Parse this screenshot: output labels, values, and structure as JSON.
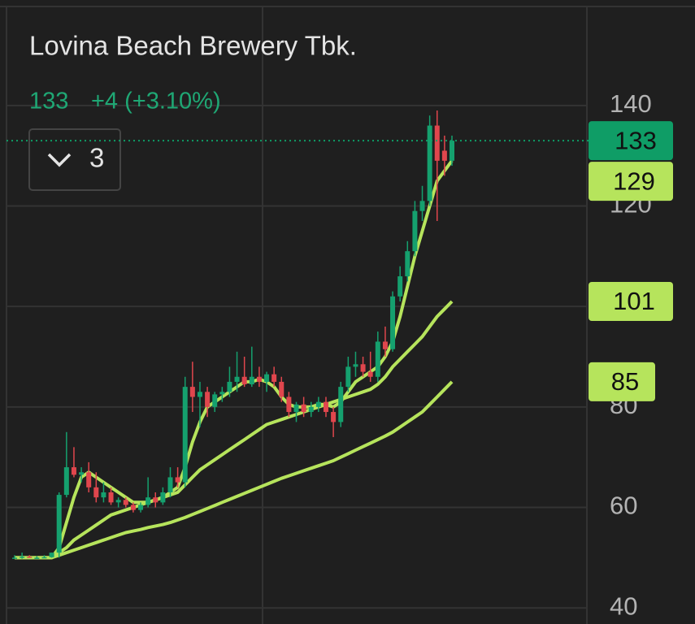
{
  "header": {
    "title": "Lovina Beach Brewery Tbk.",
    "change": "+4 (+3.10%)",
    "indicators": 3
  },
  "chart_data": {
    "type": "candlestick",
    "open": [
      50,
      50,
      50.2,
      50,
      50,
      50.1,
      51,
      62.5,
      68,
      66.5,
      67,
      64,
      62,
      63,
      61,
      61.5,
      60.5,
      59.5,
      60.5,
      62,
      61,
      63,
      66,
      65,
      84,
      82,
      83,
      80,
      82.5,
      83,
      85,
      86,
      84.5,
      86,
      85,
      86.5,
      85,
      82,
      79,
      80.5,
      79,
      80,
      81,
      79,
      77,
      84,
      88,
      88.5,
      87,
      86,
      93,
      91.5,
      102,
      106,
      111,
      119,
      121,
      136,
      131,
      129
    ],
    "high": [
      50.5,
      51,
      50.5,
      50.3,
      50.5,
      51,
      63,
      75,
      72,
      68,
      69,
      67,
      65,
      64,
      62,
      62,
      61,
      61,
      66,
      63,
      64,
      68,
      68,
      86,
      89,
      85,
      84,
      83,
      84,
      88,
      91,
      90,
      92,
      88,
      87,
      88,
      86,
      83,
      81,
      82,
      81,
      82,
      82,
      80,
      85,
      90,
      91,
      90,
      91,
      95,
      96,
      103,
      108,
      113,
      121,
      124,
      138,
      139,
      134,
      134
    ],
    "low": [
      50,
      49.8,
      50,
      49.8,
      49.9,
      50,
      50,
      62,
      66,
      65,
      63,
      61,
      61,
      60.5,
      60,
      60,
      59,
      59,
      60,
      60,
      60.5,
      62,
      64,
      64,
      79,
      76,
      78,
      79,
      81,
      82,
      83,
      84,
      84,
      84,
      83,
      84,
      81,
      78,
      77,
      78,
      78,
      79,
      78,
      74,
      76,
      83,
      86,
      86,
      85,
      85,
      90,
      91,
      101,
      105,
      110,
      117,
      120,
      117,
      126,
      128
    ],
    "close": [
      50,
      50.2,
      50,
      50,
      50.1,
      51,
      62.5,
      68,
      66.5,
      67,
      64,
      62,
      63,
      61,
      61.5,
      60.5,
      59.5,
      60.5,
      62,
      61,
      63,
      66,
      65,
      84,
      82,
      83,
      80,
      82.5,
      83,
      85,
      86,
      84.5,
      86,
      85,
      86.5,
      85,
      82,
      79,
      80.5,
      79,
      80,
      81,
      79,
      77,
      84,
      88,
      88.5,
      87,
      86,
      93,
      91.5,
      102,
      106,
      111,
      119,
      121,
      136,
      129,
      129,
      133
    ],
    "up_color": "#15a06e",
    "down_color": "#e0464d",
    "lines": [
      {
        "color": "#b6e45c",
        "values": [
          50,
          50,
          50,
          50,
          50,
          50,
          52,
          57,
          62,
          66,
          67,
          66,
          65,
          64,
          63,
          62,
          61,
          61,
          61,
          61.5,
          62,
          63,
          64,
          68,
          73,
          77,
          80,
          81,
          82,
          83,
          84,
          85,
          85,
          85.5,
          85,
          84,
          82,
          80.5,
          80,
          80,
          80,
          80.5,
          80.5,
          80,
          81,
          83,
          85,
          86,
          87,
          88,
          90,
          93,
          98,
          104,
          110,
          115,
          120,
          125,
          127,
          129
        ]
      },
      {
        "color": "#b6e45c",
        "values": [
          50,
          50,
          50,
          50,
          50,
          50,
          51,
          52,
          53.5,
          54.5,
          55.5,
          56.5,
          57.5,
          58.5,
          59,
          59.5,
          60,
          60.5,
          61,
          61.5,
          62,
          62.5,
          63,
          64.5,
          66,
          67.5,
          68.5,
          69.5,
          70.5,
          71.5,
          72.5,
          73.5,
          74.5,
          75.5,
          76.5,
          77,
          77.5,
          78,
          78.5,
          79,
          79.5,
          80,
          80.5,
          81,
          81.5,
          82,
          82.5,
          83,
          83.5,
          84.5,
          86,
          88,
          89.5,
          91,
          92.5,
          94,
          96,
          98,
          99.5,
          101
        ]
      },
      {
        "color": "#b6e45c",
        "values": [
          50,
          50,
          50,
          50,
          50,
          50,
          50.5,
          51,
          51.5,
          52,
          52.5,
          53,
          53.5,
          54,
          54.5,
          55,
          55.3,
          55.6,
          56,
          56.3,
          56.6,
          57,
          57.5,
          58,
          58.6,
          59.2,
          59.8,
          60.4,
          61,
          61.6,
          62.2,
          62.8,
          63.4,
          64,
          64.6,
          65.2,
          65.8,
          66.3,
          66.8,
          67.3,
          67.8,
          68.3,
          68.8,
          69.3,
          70,
          70.7,
          71.4,
          72.1,
          72.8,
          73.5,
          74.2,
          75,
          76,
          77,
          78,
          79,
          80.5,
          82,
          83.5,
          85
        ]
      }
    ],
    "last_color": "#0f9d66",
    "ylim": [
      36.8,
      159.7
    ],
    "yticks": [
      40,
      60,
      80,
      100,
      120,
      140
    ],
    "grid": true
  }
}
